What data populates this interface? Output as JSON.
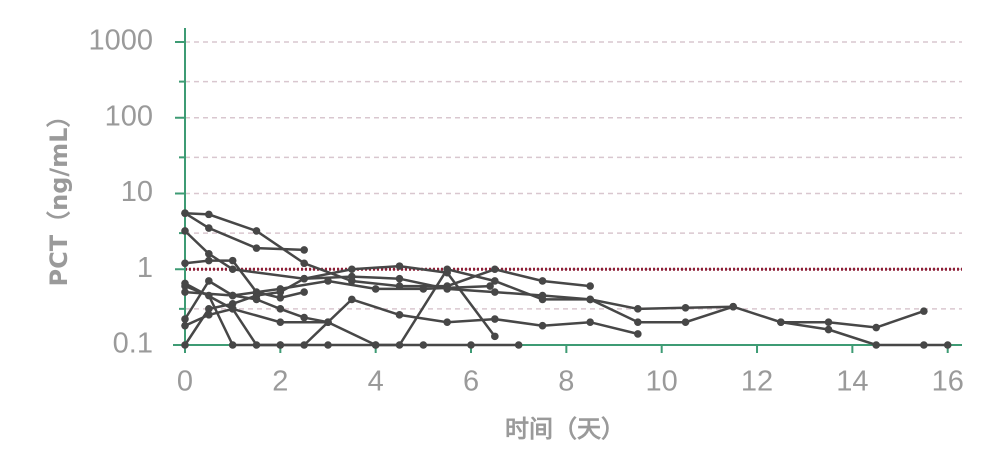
{
  "chart_data": {
    "type": "line",
    "x_label": "时间（天）",
    "y_label": "PCT（ng/mL）",
    "xlim": [
      0,
      16.3
    ],
    "xticks": [
      0,
      2,
      4,
      6,
      8,
      10,
      12,
      14,
      16
    ],
    "ylim": [
      0.1,
      1000
    ],
    "yticks": [
      0.1,
      1,
      10,
      100,
      1000
    ],
    "y_log": true,
    "ygrid_minor": [
      0.3,
      3,
      30,
      300
    ],
    "grid": true,
    "axis_color": "#3e9b74",
    "grid_color": "#d9c7cf",
    "line_color": "#474747",
    "reference_line": {
      "value": 1,
      "color": "#8e1f36"
    },
    "series": [
      {
        "x": [
          0,
          0.5,
          1.5,
          2.5,
          3.5,
          4.5,
          5.5,
          6.5,
          7.5,
          8.5
        ],
        "y": [
          5.5,
          5.3,
          3.2,
          1.2,
          0.7,
          0.6,
          0.6,
          1.0,
          0.7,
          0.6
        ]
      },
      {
        "x": [
          0,
          0.5,
          1.5,
          2.5
        ],
        "y": [
          5.5,
          3.5,
          1.9,
          1.8
        ]
      },
      {
        "x": [
          0,
          0.5,
          1,
          2.5,
          3.5,
          4.5,
          5.5,
          6.5,
          7.5,
          8.5,
          9.5,
          10.5,
          11.5,
          12.5,
          13.5,
          14.5,
          15.5
        ],
        "y": [
          3.2,
          1.6,
          1.0,
          0.75,
          0.8,
          0.75,
          0.55,
          0.5,
          0.45,
          0.4,
          0.3,
          0.31,
          0.32,
          0.2,
          0.2,
          0.17,
          0.28
        ]
      },
      {
        "x": [
          0,
          0.5,
          1,
          1.5,
          2,
          2.5
        ],
        "y": [
          1.2,
          1.3,
          1.3,
          0.5,
          0.42,
          0.5
        ]
      },
      {
        "x": [
          0,
          0.5,
          1,
          2,
          3,
          4,
          5,
          6,
          7
        ],
        "y": [
          0.6,
          0.45,
          0.1,
          0.1,
          0.1,
          0.1,
          0.1,
          0.1,
          0.1
        ]
      },
      {
        "x": [
          0,
          0.5,
          1,
          1.5,
          2,
          2.5,
          3.5,
          4.5,
          5.5,
          6.5
        ],
        "y": [
          0.1,
          0.3,
          0.35,
          0.45,
          0.5,
          0.75,
          1.0,
          1.1,
          0.9,
          0.13
        ]
      },
      {
        "x": [
          0,
          1,
          2,
          3,
          4,
          5,
          6.4
        ],
        "y": [
          0.5,
          0.45,
          0.55,
          0.7,
          0.55,
          0.55,
          0.6
        ]
      },
      {
        "x": [
          0,
          1,
          2,
          3,
          4,
          4.5,
          5.5,
          6.5,
          7.5,
          8.5,
          9.5,
          10.5,
          11.5
        ],
        "y": [
          0.65,
          0.3,
          0.2,
          0.2,
          0.1,
          0.1,
          1.0,
          0.7,
          0.4,
          0.4,
          0.2,
          0.2,
          0.32
        ]
      },
      {
        "x": [
          0,
          0.5,
          1,
          1.5,
          2,
          2.5,
          3,
          3.5,
          4.5,
          5.5,
          6.5,
          7.5,
          8.5,
          9.5
        ],
        "y": [
          0.22,
          0.7,
          0.45,
          0.4,
          0.3,
          0.23,
          0.2,
          0.4,
          0.25,
          0.2,
          0.22,
          0.18,
          0.2,
          0.14
        ]
      },
      {
        "x": [
          0,
          0.5,
          1,
          1.5,
          2,
          2.5,
          3
        ],
        "y": [
          0.18,
          0.25,
          0.3,
          0.1,
          0.1,
          0.1,
          0.2
        ]
      },
      {
        "x": [
          12.5,
          13.5,
          14.5,
          15.5,
          16
        ],
        "y": [
          0.2,
          0.16,
          0.1,
          0.1,
          0.1
        ]
      }
    ]
  }
}
